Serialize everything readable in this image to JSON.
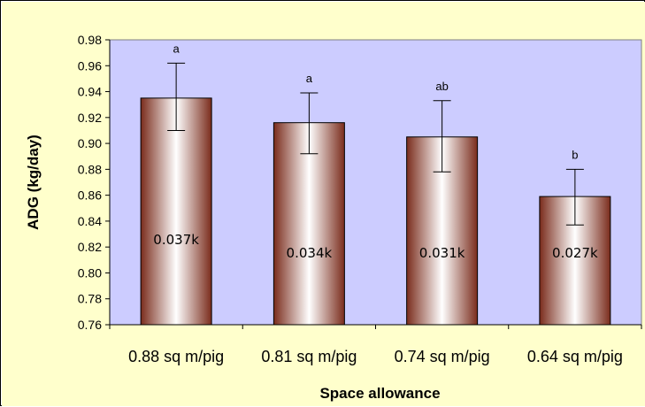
{
  "chart_data": {
    "type": "bar",
    "categories": [
      "0.88 sq m/pig",
      "0.81 sq m/pig",
      "0.74 sq m/pig",
      "0.64 sq m/pig"
    ],
    "values": [
      0.935,
      0.916,
      0.905,
      0.859
    ],
    "error_low": [
      0.91,
      0.892,
      0.878,
      0.837
    ],
    "error_high": [
      0.962,
      0.939,
      0.933,
      0.88
    ],
    "significance_letters": [
      "a",
      "a",
      "ab",
      "b"
    ],
    "data_labels": [
      "0.037k",
      "0.034k",
      "0.031k",
      "0.027k"
    ],
    "ylabel": "ADG (kg/day)",
    "xlabel": "Space allowance",
    "ylim": [
      0.76,
      0.98
    ],
    "yticks": [
      "0.76",
      "0.78",
      "0.80",
      "0.82",
      "0.84",
      "0.86",
      "0.88",
      "0.90",
      "0.92",
      "0.94",
      "0.96",
      "0.98"
    ],
    "grid": false,
    "legend": "none",
    "colors": {
      "plot_background": "#CCCCFF",
      "figure_background": "#FFFFCC",
      "bar_edge": "#7A2C1C",
      "bar_center": "#FFFFFF"
    }
  }
}
